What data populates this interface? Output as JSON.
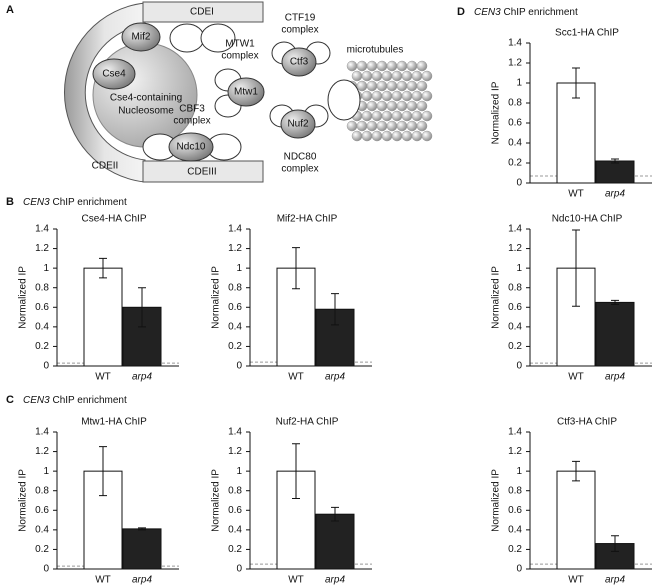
{
  "panels": {
    "a": "A",
    "b": "B",
    "c": "C",
    "d": "D"
  },
  "headers": {
    "b": {
      "gene": "CEN3",
      "text": "ChIP enrichment"
    },
    "c": {
      "gene": "CEN3",
      "text": "ChIP enrichment"
    },
    "d": {
      "gene": "CEN3",
      "text": "ChIP enrichment"
    }
  },
  "diagram": {
    "cdei": "CDEI",
    "mif2": "Mif2",
    "cse4": "Cse4",
    "nucleosome_1": "Cse4-containing",
    "nucleosome_2": "Nucleosome",
    "cbf3_1": "CBF3",
    "cbf3_2": "complex",
    "ndc10": "Ndc10",
    "cdeii": "CDEII",
    "cdeiii": "CDEIII",
    "mtw1_complex_1": "MTW1",
    "mtw1_complex_2": "complex",
    "mtw1": "Mtw1",
    "ctf19_1": "CTF19",
    "ctf19_2": "complex",
    "ctf3": "Ctf3",
    "microtubules": "microtubules",
    "nuf2": "Nuf2",
    "ndc80_1": "NDC80",
    "ndc80_2": "complex"
  },
  "chart_data": [
    {
      "type": "bar",
      "title": "Scc1-HA ChIP",
      "y_label": "Normalized IP",
      "categories": [
        "WT",
        "arp4"
      ],
      "values": [
        1.0,
        0.22
      ],
      "errors": [
        0.15,
        0.02
      ],
      "reference_line": 0.07,
      "colors": [
        "#ffffff",
        "#222222"
      ],
      "ylim": [
        0,
        1.4
      ],
      "yticks": [
        0,
        0.2,
        0.4,
        0.6,
        0.8,
        1,
        1.2,
        1.4
      ]
    },
    {
      "type": "bar",
      "title": "Cse4-HA ChIP",
      "y_label": "Normalized IP",
      "categories": [
        "WT",
        "arp4"
      ],
      "values": [
        1.0,
        0.6
      ],
      "errors": [
        0.1,
        0.2
      ],
      "reference_line": 0.03,
      "colors": [
        "#ffffff",
        "#222222"
      ],
      "ylim": [
        0,
        1.4
      ],
      "yticks": [
        0,
        0.2,
        0.4,
        0.6,
        0.8,
        1,
        1.2,
        1.4
      ]
    },
    {
      "type": "bar",
      "title": "Mif2-HA ChIP",
      "y_label": "Normalized IP",
      "categories": [
        "WT",
        "arp4"
      ],
      "values": [
        1.0,
        0.58
      ],
      "errors": [
        0.21,
        0.16
      ],
      "reference_line": 0.04,
      "colors": [
        "#ffffff",
        "#222222"
      ],
      "ylim": [
        0,
        1.4
      ],
      "yticks": [
        0,
        0.2,
        0.4,
        0.6,
        0.8,
        1,
        1.2,
        1.4
      ]
    },
    {
      "type": "bar",
      "title": "Ndc10-HA ChIP",
      "y_label": "Normalized IP",
      "categories": [
        "WT",
        "arp4"
      ],
      "values": [
        1.0,
        0.65
      ],
      "errors": [
        0.39,
        0.02
      ],
      "reference_line": 0.03,
      "colors": [
        "#ffffff",
        "#222222"
      ],
      "ylim": [
        0,
        1.4
      ],
      "yticks": [
        0,
        0.2,
        0.4,
        0.6,
        0.8,
        1,
        1.2,
        1.4
      ]
    },
    {
      "type": "bar",
      "title": "Mtw1-HA ChIP",
      "y_label": "Normalized IP",
      "categories": [
        "WT",
        "arp4"
      ],
      "values": [
        1.0,
        0.41
      ],
      "errors": [
        0.25,
        0.01
      ],
      "reference_line": 0.03,
      "colors": [
        "#ffffff",
        "#222222"
      ],
      "ylim": [
        0,
        1.4
      ],
      "yticks": [
        0,
        0.2,
        0.4,
        0.6,
        0.8,
        1,
        1.2,
        1.4
      ]
    },
    {
      "type": "bar",
      "title": "Nuf2-HA ChIP",
      "y_label": "Normalized IP",
      "categories": [
        "WT",
        "arp4"
      ],
      "values": [
        1.0,
        0.56
      ],
      "errors": [
        0.28,
        0.07
      ],
      "reference_line": 0.05,
      "colors": [
        "#ffffff",
        "#222222"
      ],
      "ylim": [
        0,
        1.4
      ],
      "yticks": [
        0,
        0.2,
        0.4,
        0.6,
        0.8,
        1,
        1.2,
        1.4
      ]
    },
    {
      "type": "bar",
      "title": "Ctf3-HA ChIP",
      "y_label": "Normalized IP",
      "categories": [
        "WT",
        "arp4"
      ],
      "values": [
        1.0,
        0.26
      ],
      "errors": [
        0.1,
        0.08
      ],
      "reference_line": 0.05,
      "colors": [
        "#ffffff",
        "#222222"
      ],
      "ylim": [
        0,
        1.4
      ],
      "yticks": [
        0,
        0.2,
        0.4,
        0.6,
        0.8,
        1,
        1.2,
        1.4
      ]
    }
  ]
}
